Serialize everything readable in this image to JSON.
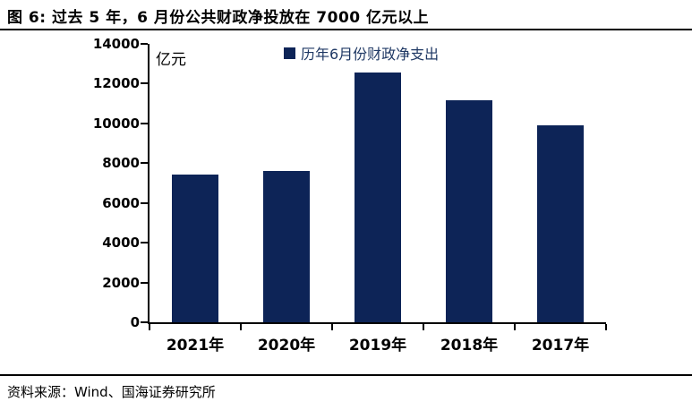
{
  "header": {
    "title": "图 6:  过去 5 年，6 月份公共财政净投放在 7000 亿元以上"
  },
  "chart_data": {
    "type": "bar",
    "title": "图 6: 过去 5 年，6 月份公共财政净投放在 7000 亿元以上",
    "unit_label": "亿元",
    "legend": "历年6月份财政净支出",
    "legend_position": "top",
    "categories": [
      "2021年",
      "2020年",
      "2019年",
      "2018年",
      "2017年"
    ],
    "values": [
      7450,
      7600,
      12550,
      11150,
      9900
    ],
    "ylim": [
      0,
      14000
    ],
    "yticks": [
      0,
      2000,
      4000,
      6000,
      8000,
      10000,
      12000,
      14000
    ],
    "grid": false,
    "bar_color": "#0D2457"
  },
  "footer": {
    "source": "资料来源：Wind、国海证券研究所"
  },
  "colors": {
    "bar": "#0D2457",
    "legend_text": "#1F3864",
    "axis": "#000000"
  }
}
